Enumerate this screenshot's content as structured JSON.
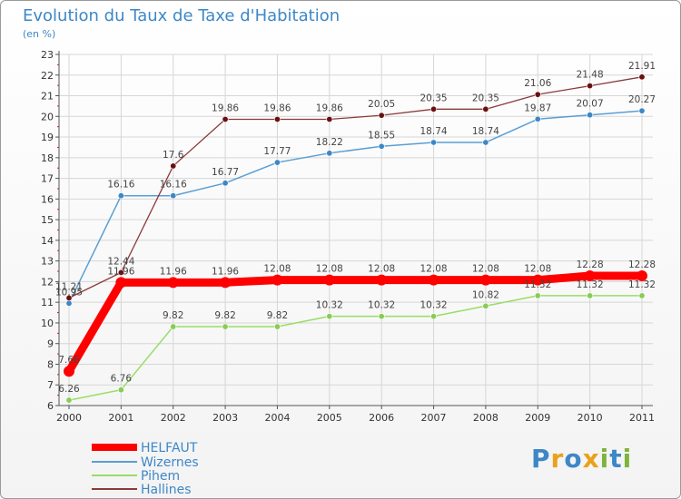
{
  "title": "Evolution du Taux de Taxe d'Habitation",
  "subtitle": "(en %)",
  "logo_text": "Proxiti",
  "chart_data": {
    "type": "line",
    "title": "Evolution du Taux de Taxe d'Habitation",
    "ylabel": "(en %)",
    "xlabel": "",
    "categories": [
      "2000",
      "2001",
      "2002",
      "2003",
      "2004",
      "2005",
      "2006",
      "2007",
      "2008",
      "2009",
      "2010",
      "2011"
    ],
    "ylim": [
      6,
      23
    ],
    "yticks": [
      "6",
      "7",
      "8",
      "9",
      "10",
      "11",
      "12",
      "13",
      "14",
      "15",
      "16",
      "17",
      "18",
      "19",
      "20",
      "21",
      "22",
      "23"
    ],
    "grid": true,
    "legend_position": "bottom-left",
    "series": [
      {
        "name": "HELFAUT",
        "color": "#ff0000",
        "values": [
          7.66,
          11.96,
          11.96,
          11.96,
          12.08,
          12.08,
          12.08,
          12.08,
          12.08,
          12.08,
          12.28,
          12.28
        ],
        "labels": [
          "7.66",
          "11.96",
          "11.96",
          "11.96",
          "12.08",
          "12.08",
          "12.08",
          "12.08",
          "12.08",
          "12.08",
          "12.28",
          "12.28"
        ]
      },
      {
        "name": "Wizernes",
        "color": "#5a9fd4",
        "values": [
          10.95,
          16.16,
          16.16,
          16.77,
          17.77,
          18.22,
          18.55,
          18.74,
          18.74,
          19.87,
          20.07,
          20.27
        ],
        "labels": [
          "10.95",
          "16.16",
          "16.16",
          "16.77",
          "17.77",
          "18.22",
          "18.55",
          "18.74",
          "18.74",
          "19.87",
          "20.07",
          "20.27"
        ]
      },
      {
        "name": "Pihem",
        "color": "#99dd66",
        "values": [
          6.26,
          6.76,
          9.82,
          9.82,
          9.82,
          10.32,
          10.32,
          10.32,
          10.82,
          11.32,
          11.32,
          11.32
        ],
        "labels": [
          "6.26",
          "6.76",
          "9.82",
          "9.82",
          "9.82",
          "10.32",
          "10.32",
          "10.32",
          "10.82",
          "11.32",
          "11.32",
          "11.32"
        ]
      },
      {
        "name": "Hallines",
        "color": "#7a2222",
        "values": [
          11.21,
          12.44,
          17.6,
          19.86,
          19.86,
          19.86,
          20.05,
          20.35,
          20.35,
          21.06,
          21.48,
          21.91
        ],
        "labels": [
          "11.21",
          "12.44",
          "17.6",
          "19.86",
          "19.86",
          "19.86",
          "20.05",
          "20.35",
          "20.35",
          "21.06",
          "21.48",
          "21.91"
        ]
      }
    ]
  }
}
